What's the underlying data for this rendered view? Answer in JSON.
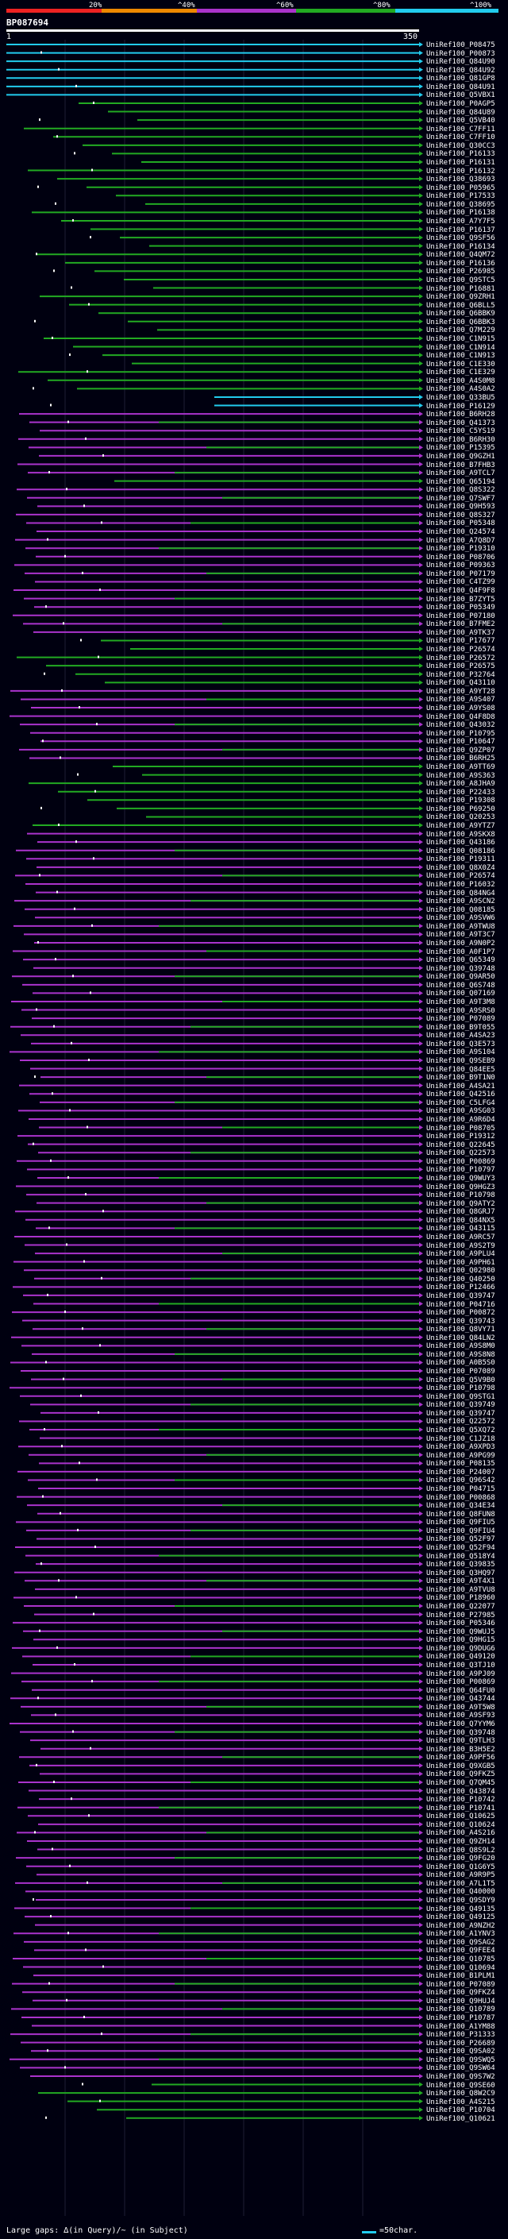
{
  "legend": {
    "labels": [
      "20%",
      "^40%",
      "^60%",
      "^80%",
      "^100%"
    ],
    "colors": [
      "#ee2222",
      "#ee8800",
      "#aa33cc",
      "#22aa22",
      "#22ccee"
    ]
  },
  "query": {
    "id": "BP087694",
    "start_label": "1",
    "end_label": "350"
  },
  "hits": [
    {
      "id": "UniRef100_P08475",
      "class": "cyan"
    },
    {
      "id": "UniRef100_P00873",
      "class": "cyan"
    },
    {
      "id": "UniRef100_Q84U90",
      "class": "cyan"
    },
    {
      "id": "UniRef100_Q84U92",
      "class": "cyan"
    },
    {
      "id": "UniRef100_Q81GP8",
      "class": "cyan"
    },
    {
      "id": "UniRef100_Q84U91",
      "class": "cyan"
    },
    {
      "id": "UniRef100_Q5VBX1",
      "class": "cyan"
    },
    {
      "id": "UniRef100_P0AGP5",
      "class": "green"
    },
    {
      "id": "UniRef100_Q84U89",
      "class": "green"
    },
    {
      "id": "UniRef100_Q5VB40",
      "class": "green"
    },
    {
      "id": "UniRef100_C7FF11",
      "class": "green"
    },
    {
      "id": "UniRef100_C7FF10",
      "class": "green"
    },
    {
      "id": "UniRef100_Q30CC3",
      "class": "green"
    },
    {
      "id": "UniRef100_P16133",
      "class": "green"
    },
    {
      "id": "UniRef100_P16131",
      "class": "green"
    },
    {
      "id": "UniRef100_P16132",
      "class": "green"
    },
    {
      "id": "UniRef100_Q38693",
      "class": "green"
    },
    {
      "id": "UniRef100_P05965",
      "class": "green"
    },
    {
      "id": "UniRef100_P17533",
      "class": "green"
    },
    {
      "id": "UniRef100_Q38695",
      "class": "green"
    },
    {
      "id": "UniRef100_P16138",
      "class": "green"
    },
    {
      "id": "UniRef100_A7Y7F5",
      "class": "green"
    },
    {
      "id": "UniRef100_P16137",
      "class": "green"
    },
    {
      "id": "UniRef100_Q9SF56",
      "class": "green"
    },
    {
      "id": "UniRef100_P16134",
      "class": "green"
    },
    {
      "id": "UniRef100_Q4QM72",
      "class": "green"
    },
    {
      "id": "UniRef100_P16136",
      "class": "green"
    },
    {
      "id": "UniRef100_P26985",
      "class": "green"
    },
    {
      "id": "UniRef100_Q9STC5",
      "class": "green"
    },
    {
      "id": "UniRef100_P16881",
      "class": "green"
    },
    {
      "id": "UniRef100_Q9ZRH1",
      "class": "green"
    },
    {
      "id": "UniRef100_Q6BLL5",
      "class": "green"
    },
    {
      "id": "UniRef100_Q6BBK9",
      "class": "green"
    },
    {
      "id": "UniRef100_Q6BBK3",
      "class": "green"
    },
    {
      "id": "UniRef100_Q7M229",
      "class": "green"
    },
    {
      "id": "UniRef100_C1N915",
      "class": "green"
    },
    {
      "id": "UniRef100_C1N914",
      "class": "green"
    },
    {
      "id": "UniRef100_C1N913",
      "class": "green"
    },
    {
      "id": "UniRef100_C1E330",
      "class": "green"
    },
    {
      "id": "UniRef100_C1E329",
      "class": "green"
    },
    {
      "id": "UniRef100_A4S0M8",
      "class": "green"
    },
    {
      "id": "UniRef100_A4S0A2",
      "class": "green"
    },
    {
      "id": "UniRef100_Q33BU5",
      "class": "cyan"
    },
    {
      "id": "UniRef100_P16129",
      "class": "cyan"
    },
    {
      "id": "UniRef100_B6RH28",
      "class": "purple"
    },
    {
      "id": "UniRef100_Q41373",
      "class": "purple"
    },
    {
      "id": "UniRef100_C5YS19",
      "class": "purple"
    },
    {
      "id": "UniRef100_B6RH30",
      "class": "purple"
    },
    {
      "id": "UniRef100_P15395",
      "class": "purple"
    },
    {
      "id": "UniRef100_Q9GZH1",
      "class": "purple"
    },
    {
      "id": "UniRef100_B7FHB3",
      "class": "purple"
    },
    {
      "id": "UniRef100_A9TCL7",
      "class": "purple"
    },
    {
      "id": "UniRef100_Q65194",
      "class": "green"
    },
    {
      "id": "UniRef100_Q8S322",
      "class": "purple"
    },
    {
      "id": "UniRef100_Q7SWF7",
      "class": "purple"
    },
    {
      "id": "UniRef100_Q9H593",
      "class": "purple"
    },
    {
      "id": "UniRef100_Q8S327",
      "class": "purple"
    },
    {
      "id": "UniRef100_P05348",
      "class": "purple"
    },
    {
      "id": "UniRef100_Q24574",
      "class": "purple"
    },
    {
      "id": "UniRef100_A7Q8D7",
      "class": "purple"
    },
    {
      "id": "UniRef100_P19310",
      "class": "purple"
    },
    {
      "id": "UniRef100_P08706",
      "class": "purple"
    },
    {
      "id": "UniRef100_P09363",
      "class": "purple"
    },
    {
      "id": "UniRef100_P07179",
      "class": "purple"
    },
    {
      "id": "UniRef100_C4TZ99",
      "class": "purple"
    },
    {
      "id": "UniRef100_Q4F9F8",
      "class": "purple"
    },
    {
      "id": "UniRef100_B7ZYT5",
      "class": "purple"
    },
    {
      "id": "UniRef100_P05349",
      "class": "purple"
    },
    {
      "id": "UniRef100_P07180",
      "class": "purple"
    },
    {
      "id": "UniRef100_B7FME2",
      "class": "purple"
    },
    {
      "id": "UniRef100_A9TK37",
      "class": "purple"
    },
    {
      "id": "UniRef100_P17677",
      "class": "green"
    },
    {
      "id": "UniRef100_P26574",
      "class": "green"
    },
    {
      "id": "UniRef100_P26572",
      "class": "green"
    },
    {
      "id": "UniRef100_P26575",
      "class": "green"
    },
    {
      "id": "UniRef100_P32764",
      "class": "green"
    },
    {
      "id": "UniRef100_Q43110",
      "class": "green"
    },
    {
      "id": "UniRef100_A9YT28",
      "class": "purple"
    },
    {
      "id": "UniRef100_A9S407",
      "class": "purple"
    },
    {
      "id": "UniRef100_A9YS08",
      "class": "purple"
    },
    {
      "id": "UniRef100_Q4F8D8",
      "class": "purple"
    },
    {
      "id": "UniRef100_Q43032",
      "class": "purple"
    },
    {
      "id": "UniRef100_P10795",
      "class": "purple"
    },
    {
      "id": "UniRef100_P10647",
      "class": "purple"
    },
    {
      "id": "UniRef100_Q9ZP07",
      "class": "purple"
    },
    {
      "id": "UniRef100_B6RH25",
      "class": "purple"
    },
    {
      "id": "UniRef100_A9TT69",
      "class": "green"
    },
    {
      "id": "UniRef100_A9S363",
      "class": "green"
    },
    {
      "id": "UniRef100_A8JHA9",
      "class": "green"
    },
    {
      "id": "UniRef100_P22433",
      "class": "green"
    },
    {
      "id": "UniRef100_P19308",
      "class": "green"
    },
    {
      "id": "UniRef100_P69250",
      "class": "green"
    },
    {
      "id": "UniRef100_Q20253",
      "class": "green"
    },
    {
      "id": "UniRef100_A9YTZ7",
      "class": "green"
    },
    {
      "id": "UniRef100_A9SKX8",
      "class": "purple"
    },
    {
      "id": "UniRef100_Q43186",
      "class": "purple"
    },
    {
      "id": "UniRef100_Q08186",
      "class": "purple"
    },
    {
      "id": "UniRef100_P19311",
      "class": "purple"
    },
    {
      "id": "UniRef100_Q8X0Z4",
      "class": "purple"
    },
    {
      "id": "UniRef100_P26574",
      "class": "purple"
    },
    {
      "id": "UniRef100_P16032",
      "class": "purple"
    },
    {
      "id": "UniRef100_Q84NG4",
      "class": "purple"
    },
    {
      "id": "UniRef100_A9SCN2",
      "class": "purple"
    },
    {
      "id": "UniRef100_Q08185",
      "class": "purple"
    },
    {
      "id": "UniRef100_A9SVW6",
      "class": "purple"
    },
    {
      "id": "UniRef100_A9TWU8",
      "class": "purple"
    },
    {
      "id": "UniRef100_A9T3C7",
      "class": "purple"
    },
    {
      "id": "UniRef100_A9N0P2",
      "class": "purple"
    },
    {
      "id": "UniRef100_A0F1P7",
      "class": "purple"
    },
    {
      "id": "UniRef100_Q65349",
      "class": "purple"
    },
    {
      "id": "UniRef100_Q39748",
      "class": "purple"
    },
    {
      "id": "UniRef100_Q9AR50",
      "class": "purple"
    },
    {
      "id": "UniRef100_Q6S748",
      "class": "purple"
    },
    {
      "id": "UniRef100_Q07169",
      "class": "purple"
    },
    {
      "id": "UniRef100_A9T3M8",
      "class": "purple"
    },
    {
      "id": "UniRef100_A9SRS0",
      "class": "purple"
    },
    {
      "id": "UniRef100_P07089",
      "class": "purple"
    },
    {
      "id": "UniRef100_B9T055",
      "class": "purple"
    },
    {
      "id": "UniRef100_A4SA23",
      "class": "purple"
    },
    {
      "id": "UniRef100_Q3E573",
      "class": "purple"
    },
    {
      "id": "UniRef100_A9S104",
      "class": "purple"
    },
    {
      "id": "UniRef100_Q9SEB9",
      "class": "purple"
    },
    {
      "id": "UniRef100_Q84EE5",
      "class": "purple"
    },
    {
      "id": "UniRef100_B9T1N0",
      "class": "purple"
    },
    {
      "id": "UniRef100_A4SA21",
      "class": "purple"
    },
    {
      "id": "UniRef100_Q42516",
      "class": "purple"
    },
    {
      "id": "UniRef100_C5LFG4",
      "class": "purple"
    },
    {
      "id": "UniRef100_A9SG03",
      "class": "purple"
    },
    {
      "id": "UniRef100_A9R6D4",
      "class": "purple"
    },
    {
      "id": "UniRef100_P08705",
      "class": "purple"
    },
    {
      "id": "UniRef100_P19312",
      "class": "purple"
    },
    {
      "id": "UniRef100_Q22645",
      "class": "purple"
    },
    {
      "id": "UniRef100_Q22573",
      "class": "purple"
    },
    {
      "id": "UniRef100_P00869",
      "class": "purple"
    },
    {
      "id": "UniRef100_P10797",
      "class": "purple"
    },
    {
      "id": "UniRef100_Q9WUY3",
      "class": "purple"
    },
    {
      "id": "UniRef100_Q9HGZ3",
      "class": "purple"
    },
    {
      "id": "UniRef100_P10798",
      "class": "purple"
    },
    {
      "id": "UniRef100_Q9ATY2",
      "class": "purple"
    },
    {
      "id": "UniRef100_Q8GRJ7",
      "class": "purple"
    },
    {
      "id": "UniRef100_Q84NX5",
      "class": "purple"
    },
    {
      "id": "UniRef100_Q43115",
      "class": "purple"
    },
    {
      "id": "UniRef100_A9RC57",
      "class": "purple"
    },
    {
      "id": "UniRef100_A9S2T9",
      "class": "purple"
    },
    {
      "id": "UniRef100_A9PLU4",
      "class": "purple"
    },
    {
      "id": "UniRef100_A9PH61",
      "class": "purple"
    },
    {
      "id": "UniRef100_Q02980",
      "class": "purple"
    },
    {
      "id": "UniRef100_Q40250",
      "class": "purple"
    },
    {
      "id": "UniRef100_P12466",
      "class": "purple"
    },
    {
      "id": "UniRef100_Q39747",
      "class": "purple"
    },
    {
      "id": "UniRef100_P04716",
      "class": "purple"
    },
    {
      "id": "UniRef100_P00872",
      "class": "purple"
    },
    {
      "id": "UniRef100_Q39743",
      "class": "purple"
    },
    {
      "id": "UniRef100_Q8VY71",
      "class": "purple"
    },
    {
      "id": "UniRef100_Q84LN2",
      "class": "purple"
    },
    {
      "id": "UniRef100_A9S8M0",
      "class": "purple"
    },
    {
      "id": "UniRef100_A9S8N8",
      "class": "purple"
    },
    {
      "id": "UniRef100_A0B5S0",
      "class": "purple"
    },
    {
      "id": "UniRef100_P07089",
      "class": "purple"
    },
    {
      "id": "UniRef100_Q5V9B0",
      "class": "purple"
    },
    {
      "id": "UniRef100_P10798",
      "class": "purple"
    },
    {
      "id": "UniRef100_Q9STG1",
      "class": "purple"
    },
    {
      "id": "UniRef100_Q39749",
      "class": "purple"
    },
    {
      "id": "UniRef100_Q39747",
      "class": "purple"
    },
    {
      "id": "UniRef100_Q22572",
      "class": "purple"
    },
    {
      "id": "UniRef100_Q5XQ72",
      "class": "purple"
    },
    {
      "id": "UniRef100_C1JZ18",
      "class": "purple"
    },
    {
      "id": "UniRef100_A9XPD3",
      "class": "purple"
    },
    {
      "id": "UniRef100_A9PG99",
      "class": "purple"
    },
    {
      "id": "UniRef100_P08135",
      "class": "purple"
    },
    {
      "id": "UniRef100_P24007",
      "class": "purple"
    },
    {
      "id": "UniRef100_Q96S42",
      "class": "purple"
    },
    {
      "id": "UniRef100_P04715",
      "class": "purple"
    },
    {
      "id": "UniRef100_P00868",
      "class": "purple"
    },
    {
      "id": "UniRef100_Q34E34",
      "class": "purple"
    },
    {
      "id": "UniRef100_Q8FUN8",
      "class": "purple"
    },
    {
      "id": "UniRef100_Q9FIU5",
      "class": "purple"
    },
    {
      "id": "UniRef100_Q9FIU4",
      "class": "purple"
    },
    {
      "id": "UniRef100_Q52F97",
      "class": "purple"
    },
    {
      "id": "UniRef100_Q52F94",
      "class": "purple"
    },
    {
      "id": "UniRef100_Q518Y4",
      "class": "purple"
    },
    {
      "id": "UniRef100_Q39835",
      "class": "purple"
    },
    {
      "id": "UniRef100_Q3HQ97",
      "class": "purple"
    },
    {
      "id": "UniRef100_A9T4X1",
      "class": "purple"
    },
    {
      "id": "UniRef100_A9TVU8",
      "class": "purple"
    },
    {
      "id": "UniRef100_P18960",
      "class": "purple"
    },
    {
      "id": "UniRef100_Q22077",
      "class": "purple"
    },
    {
      "id": "UniRef100_P27985",
      "class": "purple"
    },
    {
      "id": "UniRef100_P05346",
      "class": "purple"
    },
    {
      "id": "UniRef100_Q9WUJ5",
      "class": "purple"
    },
    {
      "id": "UniRef100_Q9HG15",
      "class": "purple"
    },
    {
      "id": "UniRef100_Q9DUG6",
      "class": "purple"
    },
    {
      "id": "UniRef100_Q49120",
      "class": "purple"
    },
    {
      "id": "UniRef100_Q3TJ10",
      "class": "purple"
    },
    {
      "id": "UniRef100_A9PJ09",
      "class": "purple"
    },
    {
      "id": "UniRef100_P00869",
      "class": "purple"
    },
    {
      "id": "UniRef100_Q64FU0",
      "class": "purple"
    },
    {
      "id": "UniRef100_Q43744",
      "class": "purple"
    },
    {
      "id": "UniRef100_A9T5W8",
      "class": "purple"
    },
    {
      "id": "UniRef100_A9SF93",
      "class": "purple"
    },
    {
      "id": "UniRef100_Q7YYM6",
      "class": "purple"
    },
    {
      "id": "UniRef100_Q39748",
      "class": "purple"
    },
    {
      "id": "UniRef100_Q9TLH3",
      "class": "purple"
    },
    {
      "id": "UniRef100_B3H5E2",
      "class": "purple"
    },
    {
      "id": "UniRef100_A9PF56",
      "class": "purple"
    },
    {
      "id": "UniRef100_Q9XGB5",
      "class": "purple"
    },
    {
      "id": "UniRef100_Q9FKZ5",
      "class": "purple"
    },
    {
      "id": "UniRef100_Q7QM45",
      "class": "purple"
    },
    {
      "id": "UniRef100_Q43874",
      "class": "purple"
    },
    {
      "id": "UniRef100_P10742",
      "class": "purple"
    },
    {
      "id": "UniRef100_P10741",
      "class": "purple"
    },
    {
      "id": "UniRef100_Q10625",
      "class": "purple"
    },
    {
      "id": "UniRef100_Q10624",
      "class": "purple"
    },
    {
      "id": "UniRef100_A4S216",
      "class": "purple"
    },
    {
      "id": "UniRef100_Q9ZH14",
      "class": "purple"
    },
    {
      "id": "UniRef100_Q8S9L2",
      "class": "purple"
    },
    {
      "id": "UniRef100_Q9FG20",
      "class": "purple"
    },
    {
      "id": "UniRef100_Q1G6Y5",
      "class": "purple"
    },
    {
      "id": "UniRef100_A9R9P5",
      "class": "purple"
    },
    {
      "id": "UniRef100_A7L1T5",
      "class": "purple"
    },
    {
      "id": "UniRef100_Q40000",
      "class": "purple"
    },
    {
      "id": "UniRef100_Q9SDY9",
      "class": "purple"
    },
    {
      "id": "UniRef100_Q49135",
      "class": "purple"
    },
    {
      "id": "UniRef100_Q49125",
      "class": "purple"
    },
    {
      "id": "UniRef100_A9NZH2",
      "class": "purple"
    },
    {
      "id": "UniRef100_A1YNV3",
      "class": "purple"
    },
    {
      "id": "UniRef100_Q9SAG2",
      "class": "purple"
    },
    {
      "id": "UniRef100_Q9FEE4",
      "class": "purple"
    },
    {
      "id": "UniRef100_Q10785",
      "class": "purple"
    },
    {
      "id": "UniRef100_Q10694",
      "class": "purple"
    },
    {
      "id": "UniRef100_B1PLM1",
      "class": "purple"
    },
    {
      "id": "UniRef100_P07089",
      "class": "purple"
    },
    {
      "id": "UniRef100_Q9FKZ4",
      "class": "purple"
    },
    {
      "id": "UniRef100_Q9HUJ4",
      "class": "purple"
    },
    {
      "id": "UniRef100_Q10789",
      "class": "purple"
    },
    {
      "id": "UniRef100_P10787",
      "class": "purple"
    },
    {
      "id": "UniRef100_A1YM88",
      "class": "purple"
    },
    {
      "id": "UniRef100_P31333",
      "class": "purple"
    },
    {
      "id": "UniRef100_P26689",
      "class": "purple"
    },
    {
      "id": "UniRef100_Q9SA02",
      "class": "purple"
    },
    {
      "id": "UniRef100_Q9SWQ5",
      "class": "purple"
    },
    {
      "id": "UniRef100_Q9SW64",
      "class": "purple"
    },
    {
      "id": "UniRef100_Q9S7W2",
      "class": "purple"
    },
    {
      "id": "UniRef100_Q9SE60",
      "class": "green"
    },
    {
      "id": "UniRef100_Q8W2C9",
      "class": "green"
    },
    {
      "id": "UniRef100_A4S215",
      "class": "green"
    },
    {
      "id": "UniRef100_P10704",
      "class": "green"
    },
    {
      "id": "UniRef100_Q10621",
      "class": "green"
    }
  ],
  "footer": {
    "gaps_text": "Large gaps: ∆(in Query)/~ (in Subject)",
    "scale_text": "=50char."
  }
}
